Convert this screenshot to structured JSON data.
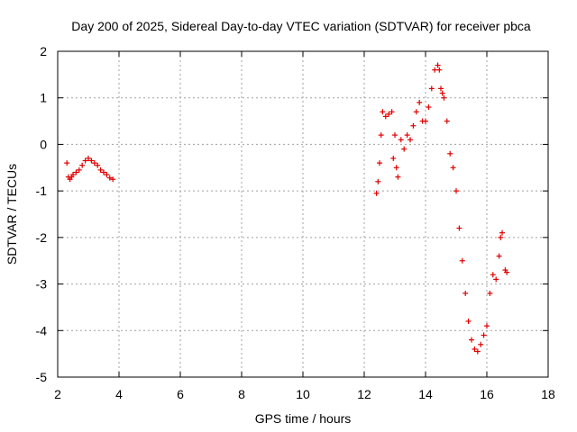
{
  "chart_data": {
    "type": "scatter",
    "title": "Day 200 of 2025, Sidereal Day-to-day VTEC variation (SDTVAR) for receiver pbca",
    "xlabel": "GPS time / hours",
    "ylabel": "SDTVAR / TECUs",
    "xlim": [
      2,
      18
    ],
    "ylim": [
      -5,
      2
    ],
    "xticks": [
      "2",
      "4",
      "6",
      "8",
      "10",
      "12",
      "14",
      "16",
      "18"
    ],
    "yticks": [
      "2",
      "1",
      "0",
      "-1",
      "-2",
      "-3",
      "-4",
      "-5"
    ],
    "grid": true,
    "marker": "+",
    "series": [
      {
        "name": "pbca",
        "color": "#e00000",
        "x": [
          2.3,
          2.35,
          2.4,
          2.45,
          2.5,
          2.6,
          2.7,
          2.8,
          2.9,
          3.0,
          3.1,
          3.2,
          3.3,
          3.4,
          3.5,
          3.6,
          3.7,
          3.8,
          12.4,
          12.45,
          12.5,
          12.55,
          12.6,
          12.7,
          12.8,
          12.9,
          12.95,
          13.0,
          13.05,
          13.1,
          13.2,
          13.3,
          13.4,
          13.5,
          13.6,
          13.7,
          13.8,
          13.9,
          14.0,
          14.1,
          14.2,
          14.3,
          14.4,
          14.45,
          14.5,
          14.55,
          14.6,
          14.7,
          14.8,
          14.9,
          15.0,
          15.1,
          15.2,
          15.3,
          15.4,
          15.5,
          15.6,
          15.7,
          15.8,
          15.9,
          16.0,
          16.1,
          16.2,
          16.3,
          16.4,
          16.45,
          16.5,
          16.6,
          16.65
        ],
        "y": [
          -0.4,
          -0.7,
          -0.75,
          -0.7,
          -0.65,
          -0.6,
          -0.55,
          -0.45,
          -0.35,
          -0.3,
          -0.35,
          -0.4,
          -0.45,
          -0.55,
          -0.6,
          -0.65,
          -0.72,
          -0.75,
          -1.05,
          -0.8,
          -0.4,
          0.2,
          0.7,
          0.6,
          0.65,
          0.7,
          -0.3,
          0.2,
          -0.5,
          -0.7,
          0.1,
          -0.1,
          0.2,
          0.1,
          0.4,
          0.7,
          0.9,
          0.5,
          0.5,
          0.8,
          1.2,
          1.6,
          1.7,
          1.6,
          1.2,
          1.1,
          1.0,
          0.5,
          -0.2,
          -0.5,
          -1.0,
          -1.8,
          -2.5,
          -3.2,
          -3.8,
          -4.2,
          -4.4,
          -4.45,
          -4.3,
          -4.1,
          -3.9,
          -3.2,
          -2.8,
          -2.9,
          -2.4,
          -2.0,
          -1.9,
          -2.7,
          -2.75
        ]
      }
    ]
  }
}
